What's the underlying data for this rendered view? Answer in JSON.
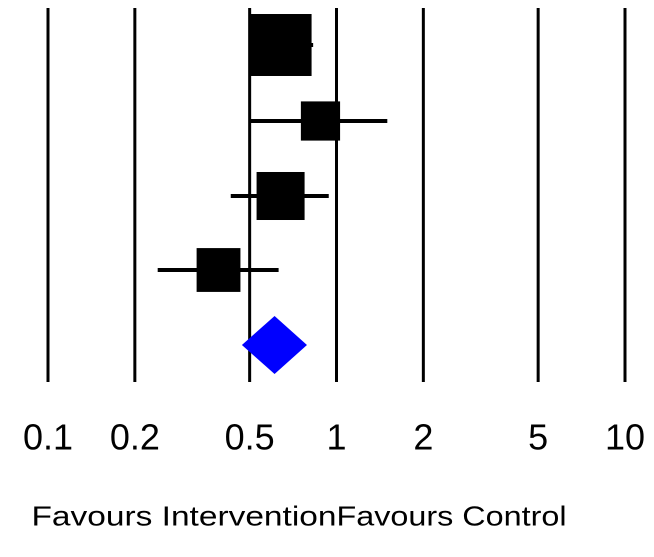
{
  "chart_data": {
    "type": "forest",
    "estimates": [
      0.64,
      0.88,
      0.64,
      0.39
    ],
    "lower": [
      0.5,
      0.5,
      0.43,
      0.24
    ],
    "upper": [
      0.83,
      1.5,
      0.94,
      0.63
    ],
    "weights": [
      40,
      16,
      24,
      20
    ],
    "color": "#000000",
    "summary": {
      "estimate": 0.61,
      "lower": 0.47,
      "upper": 0.79,
      "color": "#0000ff"
    },
    "xlim": [
      0.1,
      10
    ],
    "xticks": [
      0.1,
      0.2,
      0.5,
      1,
      2,
      5,
      10
    ],
    "log_scale": true,
    "grid": true,
    "favours_left": "Favours Intervention",
    "favours_right": "Favours Control",
    "favours_split": 1
  }
}
